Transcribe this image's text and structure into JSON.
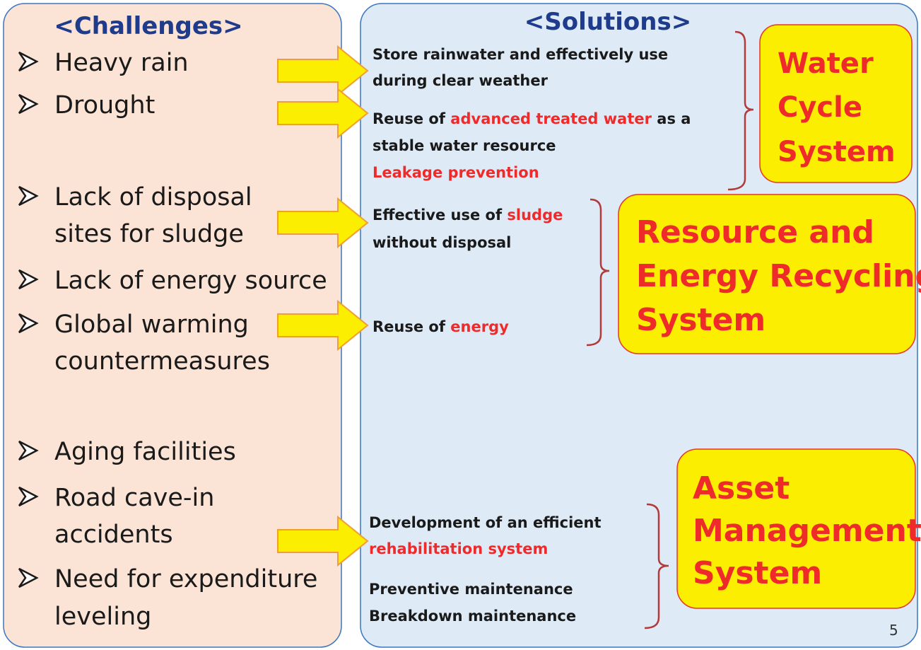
{
  "challenges": {
    "title": "<Challenges>",
    "items": [
      [
        "Heavy rain"
      ],
      [
        "Drought"
      ],
      [
        "Lack of disposal",
        "sites for sludge"
      ],
      [
        "Lack of energy source"
      ],
      [
        "Global warming",
        "countermeasures"
      ],
      [
        "Aging facilities"
      ],
      [
        "Road cave-in",
        "accidents"
      ],
      [
        "Need for expenditure",
        "leveling"
      ]
    ]
  },
  "solutions": {
    "title": "<Solutions>",
    "items": [
      {
        "lines": [
          [
            {
              "text": "Store rainwater and effectively use"
            }
          ],
          [
            {
              "text": "during clear weather"
            }
          ]
        ]
      },
      {
        "lines": [
          [
            {
              "text": "Reuse of "
            },
            {
              "text": "advanced treated water",
              "color": "#ee2a2a"
            },
            {
              "text": " as a"
            }
          ],
          [
            {
              "text": "stable water resource"
            }
          ]
        ]
      },
      {
        "lines": [
          [
            {
              "text": "Leakage prevention",
              "color": "#ee2a2a"
            }
          ]
        ]
      },
      {
        "lines": [
          [
            {
              "text": "Effective use of "
            },
            {
              "text": "sludge",
              "color": "#ee2a2a"
            }
          ],
          [
            {
              "text": "without disposal"
            }
          ]
        ]
      },
      {
        "lines": [
          [
            {
              "text": "Reuse of "
            },
            {
              "text": "energy",
              "color": "#ee2a2a"
            }
          ]
        ]
      },
      {
        "lines": [
          [
            {
              "text": "Development of an efficient"
            }
          ],
          [
            {
              "text": "rehabilitation system",
              "color": "#ee2a2a"
            }
          ]
        ]
      },
      {
        "lines": [
          [
            {
              "text": "Preventive maintenance"
            }
          ]
        ]
      },
      {
        "lines": [
          [
            {
              "text": "Breakdown maintenance"
            }
          ]
        ]
      }
    ]
  },
  "systems": [
    {
      "lines": [
        "Water",
        "Cycle",
        "System"
      ]
    },
    {
      "lines": [
        "Resource and",
        "Energy Recycling",
        "System"
      ]
    },
    {
      "lines": [
        "Asset",
        "Management",
        "System"
      ]
    }
  ],
  "page_number": "5"
}
